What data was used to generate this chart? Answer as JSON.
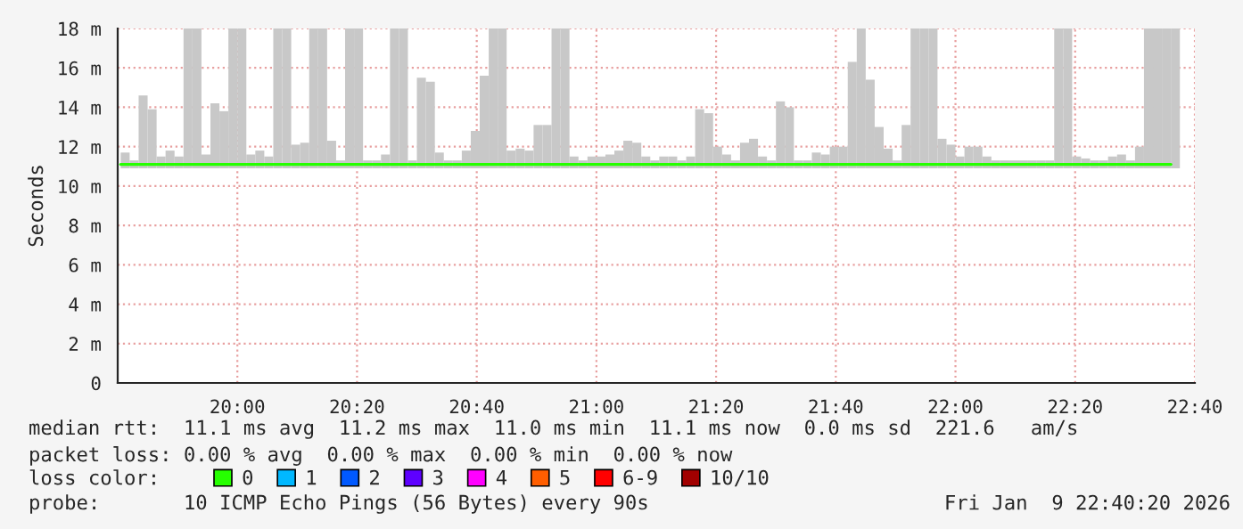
{
  "chart_data": {
    "type": "bar",
    "ylabel": "Seconds",
    "x": [
      19.675,
      19.7,
      19.725,
      19.75,
      19.775,
      19.8,
      19.825,
      19.85,
      19.875,
      19.9,
      19.925,
      19.95,
      19.975,
      20.0,
      20.025,
      20.05,
      20.075,
      20.1,
      20.125,
      20.15,
      20.175,
      20.2,
      20.225,
      20.25,
      20.275,
      20.3,
      20.325,
      20.35,
      20.375,
      20.4,
      20.425,
      20.45,
      20.475,
      20.5,
      20.525,
      20.55,
      20.575,
      20.6,
      20.625,
      20.65,
      20.675,
      20.7,
      20.725,
      20.75,
      20.775,
      20.8,
      20.825,
      20.85,
      20.875,
      20.9,
      20.925,
      20.95,
      20.975,
      21.0,
      21.025,
      21.05,
      21.075,
      21.1,
      21.125,
      21.15,
      21.175,
      21.2,
      21.225,
      21.25,
      21.275,
      21.3,
      21.325,
      21.35,
      21.375,
      21.4,
      21.425,
      21.45,
      21.475,
      21.5,
      21.525,
      21.55,
      21.575,
      21.6,
      21.625,
      21.65,
      21.675,
      21.7,
      21.725,
      21.75,
      21.775,
      21.8,
      21.825,
      21.85,
      21.875,
      21.9,
      21.925,
      21.95,
      21.975,
      22.0,
      22.025,
      22.05,
      22.075,
      22.1,
      22.125,
      22.15,
      22.175,
      22.2,
      22.225,
      22.25,
      22.275,
      22.3,
      22.325,
      22.35,
      22.375,
      22.4,
      22.425,
      22.45,
      22.475,
      22.5,
      22.525,
      22.55,
      22.575,
      22.6
    ],
    "series": [
      {
        "color": "#c8c8c8",
        "values": [
          0.8,
          0.4,
          3.7,
          3.0,
          0.6,
          0.9,
          0.6,
          7.1,
          7.1,
          0.7,
          3.3,
          2.9,
          7.1,
          7.1,
          0.7,
          0.9,
          0.6,
          7.1,
          7.1,
          1.2,
          1.3,
          7.1,
          7.1,
          1.4,
          0.4,
          7.1,
          7.1,
          0.4,
          0.4,
          0.7,
          7.1,
          7.1,
          0.4,
          4.6,
          4.4,
          0.8,
          0.4,
          0.4,
          0.9,
          1.9,
          4.7,
          7.1,
          7.1,
          0.9,
          1.0,
          0.9,
          2.2,
          2.2,
          7.1,
          7.1,
          0.6,
          0.4,
          0.6,
          0.6,
          0.7,
          0.9,
          1.4,
          1.3,
          0.6,
          0.4,
          0.6,
          0.6,
          0.4,
          0.6,
          3.0,
          2.8,
          1.1,
          0.7,
          0.4,
          1.3,
          1.5,
          0.6,
          0.4,
          3.4,
          3.1,
          0.4,
          0.4,
          0.8,
          0.7,
          1.1,
          1.1,
          5.4,
          7.1,
          4.5,
          2.1,
          1.0,
          0.4,
          2.2,
          7.1,
          7.1,
          7.1,
          1.5,
          1.2,
          0.6,
          1.1,
          1.1,
          0.6,
          0.4,
          0.4,
          0.4,
          0.4,
          0.4,
          0.4,
          0.4,
          7.1,
          7.1,
          0.6,
          0.5,
          0.4,
          0.4,
          0.6,
          0.7,
          0.4,
          1.1,
          7.1,
          7.1,
          7.1,
          7.1
        ],
        "base": [
          10.9,
          10.9,
          10.9,
          10.9,
          10.9,
          10.9,
          10.9,
          10.9,
          10.9,
          10.9,
          10.9,
          10.9,
          10.9,
          10.9,
          10.9,
          10.9,
          10.9,
          10.9,
          10.9,
          10.9,
          10.9,
          10.9,
          10.9,
          10.9,
          10.9,
          10.9,
          10.9,
          10.9,
          10.9,
          10.9,
          10.9,
          10.9,
          10.9,
          10.9,
          10.9,
          10.9,
          10.9,
          10.9,
          10.9,
          10.9,
          10.9,
          10.9,
          10.9,
          10.9,
          10.9,
          10.9,
          10.9,
          10.9,
          10.9,
          10.9,
          10.9,
          10.9,
          10.9,
          10.9,
          10.9,
          10.9,
          10.9,
          10.9,
          10.9,
          10.9,
          10.9,
          10.9,
          10.9,
          10.9,
          10.9,
          10.9,
          10.9,
          10.9,
          10.9,
          10.9,
          10.9,
          10.9,
          10.9,
          10.9,
          10.9,
          10.9,
          10.9,
          10.9,
          10.9,
          10.9,
          10.9,
          10.9,
          10.9,
          10.9,
          10.9,
          10.9,
          10.9,
          10.9,
          10.9,
          10.9,
          10.9,
          10.9,
          10.9,
          10.9,
          10.9,
          10.9,
          10.9,
          10.9,
          10.9,
          10.9,
          10.9,
          10.9,
          10.9,
          10.9,
          10.9,
          10.9,
          10.9,
          10.9,
          10.9,
          10.9,
          10.9,
          10.9,
          10.9,
          10.9,
          10.9,
          10.9,
          10.9,
          10.9
        ]
      },
      {
        "type": "line",
        "name": "0",
        "color": "#26ff00",
        "values": [
          11.1,
          11.1,
          11.1,
          11.1,
          11.1,
          11.1,
          11.1,
          11.1,
          11.1,
          11.1,
          11.1,
          11.1,
          11.1,
          11.1,
          11.1,
          11.1,
          11.1,
          11.1,
          11.1,
          11.1,
          11.1,
          11.1,
          11.1,
          11.1,
          11.1,
          11.1,
          11.1,
          11.1,
          11.1,
          11.1,
          11.1,
          11.1,
          11.1,
          11.1,
          11.1,
          11.1,
          11.1,
          11.1,
          11.1,
          11.1,
          11.1,
          11.1,
          11.1,
          11.1,
          11.1,
          11.1,
          11.1,
          11.1,
          11.1,
          11.1,
          11.1,
          11.1,
          11.1,
          11.1,
          11.1,
          11.1,
          11.1,
          11.1,
          11.1,
          11.1,
          11.1,
          11.1,
          11.1,
          11.1,
          11.1,
          11.1,
          11.1,
          11.1,
          11.1,
          11.1,
          11.1,
          11.1,
          11.1,
          11.1,
          11.1,
          11.1,
          11.1,
          11.1,
          11.1,
          11.1,
          11.1,
          11.1,
          11.1,
          11.1,
          11.1,
          11.1,
          11.1,
          11.1,
          11.1,
          11.1,
          11.1,
          11.1,
          11.1,
          11.1,
          11.1,
          11.1,
          11.1,
          11.1,
          11.1,
          11.1,
          11.1,
          11.1,
          11.1,
          11.1,
          11.1,
          11.1,
          11.1,
          11.1,
          11.1,
          11.1,
          11.1,
          11.1,
          11.1,
          11.1,
          11.1,
          11.1,
          11.1,
          11.1
        ]
      },
      {
        "type": "line",
        "name": "1",
        "color": "#00b8ff",
        "values": [
          null,
          null,
          null,
          null,
          null,
          null,
          null,
          null,
          null,
          null,
          null,
          null,
          null,
          null,
          null,
          null,
          null,
          null,
          null,
          null,
          null,
          null,
          null,
          null,
          null,
          null,
          null,
          null,
          null,
          null,
          null,
          null,
          null,
          null,
          null,
          null,
          null,
          null,
          null,
          null,
          null,
          null,
          null,
          null,
          null,
          null,
          null,
          null,
          null,
          null,
          null,
          null,
          null,
          null,
          null,
          null,
          null,
          null,
          null,
          null,
          null,
          null,
          null,
          null,
          null,
          null,
          null,
          null,
          null,
          null,
          null,
          null,
          null,
          null,
          null,
          null,
          null,
          null,
          null,
          null,
          null,
          null,
          null,
          null,
          null,
          null,
          null,
          null,
          null,
          null,
          null,
          null,
          null,
          null,
          null,
          null,
          null,
          null,
          null,
          null,
          null,
          null,
          null,
          null,
          null,
          null,
          null,
          null,
          null,
          null,
          null,
          null,
          null,
          null,
          null,
          null,
          null,
          null
        ]
      },
      {
        "type": "line",
        "name": "2",
        "color": "#0059ff",
        "values": [
          null,
          null,
          null,
          null,
          null,
          null,
          null,
          null,
          null,
          null,
          null,
          null,
          null,
          null,
          null,
          null,
          null,
          null,
          null,
          null,
          null,
          null,
          null,
          null,
          null,
          null,
          null,
          null,
          null,
          null,
          null,
          null,
          null,
          null,
          null,
          null,
          null,
          null,
          null,
          null,
          null,
          null,
          null,
          null,
          null,
          null,
          null,
          null,
          null,
          null,
          null,
          null,
          null,
          null,
          null,
          null,
          null,
          null,
          null,
          null,
          null,
          null,
          null,
          null,
          null,
          null,
          null,
          null,
          null,
          null,
          null,
          null,
          null,
          null,
          null,
          null,
          null,
          null,
          null,
          null,
          null,
          null,
          null,
          null,
          null,
          null,
          null,
          null,
          null,
          null,
          null,
          null,
          null,
          null,
          null,
          null,
          null,
          null,
          null,
          null,
          null,
          null,
          null,
          null,
          null,
          null,
          null,
          null,
          null,
          null,
          null,
          null,
          null,
          null,
          null,
          null,
          null,
          null
        ]
      },
      {
        "type": "line",
        "name": "3",
        "color": "#5e00ff",
        "values": [
          null,
          null,
          null,
          null,
          null,
          null,
          null,
          null,
          null,
          null,
          null,
          null,
          null,
          null,
          null,
          null,
          null,
          null,
          null,
          null,
          null,
          null,
          null,
          null,
          null,
          null,
          null,
          null,
          null,
          null,
          null,
          null,
          null,
          null,
          null,
          null,
          null,
          null,
          null,
          null,
          null,
          null,
          null,
          null,
          null,
          null,
          null,
          null,
          null,
          null,
          null,
          null,
          null,
          null,
          null,
          null,
          null,
          null,
          null,
          null,
          null,
          null,
          null,
          null,
          null,
          null,
          null,
          null,
          null,
          null,
          null,
          null,
          null,
          null,
          null,
          null,
          null,
          null,
          null,
          null,
          null,
          null,
          null,
          null,
          null,
          null,
          null,
          null,
          null,
          null,
          null,
          null,
          null,
          null,
          null,
          null,
          null,
          null,
          null,
          null,
          null,
          null,
          null,
          null,
          null,
          null,
          null,
          null,
          null,
          null,
          null,
          null,
          null,
          null,
          null,
          null,
          null,
          null
        ]
      },
      {
        "type": "line",
        "name": "4",
        "color": "#ff00ff",
        "values": [
          null,
          null,
          null,
          null,
          null,
          null,
          null,
          null,
          null,
          null,
          null,
          null,
          null,
          null,
          null,
          null,
          null,
          null,
          null,
          null,
          null,
          null,
          null,
          null,
          null,
          null,
          null,
          null,
          null,
          null,
          null,
          null,
          null,
          null,
          null,
          null,
          null,
          null,
          null,
          null,
          null,
          null,
          null,
          null,
          null,
          null,
          null,
          null,
          null,
          null,
          null,
          null,
          null,
          null,
          null,
          null,
          null,
          null,
          null,
          null,
          null,
          null,
          null,
          null,
          null,
          null,
          null,
          null,
          null,
          null,
          null,
          null,
          null,
          null,
          null,
          null,
          null,
          null,
          null,
          null,
          null,
          null,
          null,
          null,
          null,
          null,
          null,
          null,
          null,
          null,
          null,
          null,
          null,
          null,
          null,
          null,
          null,
          null,
          null,
          null,
          null,
          null,
          null,
          null,
          null,
          null,
          null,
          null,
          null,
          null,
          null,
          null,
          null,
          null,
          null,
          null,
          null,
          null
        ]
      },
      {
        "type": "line",
        "name": "5",
        "color": "#ff5e00",
        "values": [
          null,
          null,
          null,
          null,
          null,
          null,
          null,
          null,
          null,
          null,
          null,
          null,
          null,
          null,
          null,
          null,
          null,
          null,
          null,
          null,
          null,
          null,
          null,
          null,
          null,
          null,
          null,
          null,
          null,
          null,
          null,
          null,
          null,
          null,
          null,
          null,
          null,
          null,
          null,
          null,
          null,
          null,
          null,
          null,
          null,
          null,
          null,
          null,
          null,
          null,
          null,
          null,
          null,
          null,
          null,
          null,
          null,
          null,
          null,
          null,
          null,
          null,
          null,
          null,
          null,
          null,
          null,
          null,
          null,
          null,
          null,
          null,
          null,
          null,
          null,
          null,
          null,
          null,
          null,
          null,
          null,
          null,
          null,
          null,
          null,
          null,
          null,
          null,
          null,
          null,
          null,
          null,
          null,
          null,
          null,
          null,
          null,
          null,
          null,
          null,
          null,
          null,
          null,
          null,
          null,
          null,
          null,
          null,
          null,
          null,
          null,
          null,
          null,
          null,
          null,
          null,
          null,
          null
        ]
      },
      {
        "type": "line",
        "name": "6-9",
        "color": "#ff0000",
        "values": [
          null,
          null,
          null,
          null,
          null,
          null,
          null,
          null,
          null,
          null,
          null,
          null,
          null,
          null,
          null,
          null,
          null,
          null,
          null,
          null,
          null,
          null,
          null,
          null,
          null,
          null,
          null,
          null,
          null,
          null,
          null,
          null,
          null,
          null,
          null,
          null,
          null,
          null,
          null,
          null,
          null,
          null,
          null,
          null,
          null,
          null,
          null,
          null,
          null,
          null,
          null,
          null,
          null,
          null,
          null,
          null,
          null,
          null,
          null,
          null,
          null,
          null,
          null,
          null,
          null,
          null,
          null,
          null,
          null,
          null,
          null,
          null,
          null,
          null,
          null,
          null,
          null,
          null,
          null,
          null,
          null,
          null,
          null,
          null,
          null,
          null,
          null,
          null,
          null,
          null,
          null,
          null,
          null,
          null,
          null,
          null,
          null,
          null,
          null,
          null,
          null,
          null,
          null,
          null,
          null,
          null,
          null,
          null,
          null,
          null,
          null,
          null,
          null,
          null,
          null,
          null,
          null,
          null
        ]
      },
      {
        "type": "line",
        "name": "10/10",
        "color": "#a10000",
        "values": [
          null,
          null,
          null,
          null,
          null,
          null,
          null,
          null,
          null,
          null,
          null,
          null,
          null,
          null,
          null,
          null,
          null,
          null,
          null,
          null,
          null,
          null,
          null,
          null,
          null,
          null,
          null,
          null,
          null,
          null,
          null,
          null,
          null,
          null,
          null,
          null,
          null,
          null,
          null,
          null,
          null,
          null,
          null,
          null,
          null,
          null,
          null,
          null,
          null,
          null,
          null,
          null,
          null,
          null,
          null,
          null,
          null,
          null,
          null,
          null,
          null,
          null,
          null,
          null,
          null,
          null,
          null,
          null,
          null,
          null,
          null,
          null,
          null,
          null,
          null,
          null,
          null,
          null,
          null,
          null,
          null,
          null,
          null,
          null,
          null,
          null,
          null,
          null,
          null,
          null,
          null,
          null,
          null,
          null,
          null,
          null,
          null,
          null,
          null,
          null,
          null,
          null,
          null,
          null,
          null,
          null,
          null,
          null,
          null,
          null,
          null,
          null,
          null,
          null,
          null,
          null,
          null,
          null
        ]
      }
    ],
    "xlim": [
      19.6667,
      22.6667
    ],
    "xticks": [
      {
        "value": 20.0,
        "label": "20:00"
      },
      {
        "value": 20.3333,
        "label": "20:20"
      },
      {
        "value": 20.6667,
        "label": "20:40"
      },
      {
        "value": 21.0,
        "label": "21:00"
      },
      {
        "value": 21.3333,
        "label": "21:20"
      },
      {
        "value": 21.6667,
        "label": "21:40"
      },
      {
        "value": 22.0,
        "label": "22:00"
      },
      {
        "value": 22.3333,
        "label": "22:20"
      },
      {
        "value": 22.6667,
        "label": "22:40"
      }
    ],
    "ylim": [
      0,
      18
    ],
    "yticks": [
      0,
      {
        "value": 2,
        "label": "2 m"
      },
      {
        "value": 4,
        "label": "4 m"
      },
      {
        "value": 6,
        "label": "6 m"
      },
      {
        "value": 8,
        "label": "8 m"
      },
      {
        "value": 10,
        "label": "10 m"
      },
      {
        "value": 12,
        "label": "12 m"
      },
      {
        "value": 14,
        "label": "14 m"
      },
      {
        "value": 16,
        "label": "16 m"
      },
      {
        "value": 18,
        "label": "18 m"
      }
    ],
    "grid": true,
    "legend": "bottom",
    "legend_title": "loss color:",
    "annotations": [
      "median rtt:  11.1 ms avg  11.2 ms max  11.0 ms min  11.1 ms now  0.0 ms sd  221.6   am/s",
      "packet loss: 0.00 % avg  0.00 % max  0.00 % min  0.00 % now",
      "probe:       10 ICMP Echo Pings (56 Bytes) every 90s",
      "Fri Jan  9 22:40:20 2026"
    ]
  }
}
